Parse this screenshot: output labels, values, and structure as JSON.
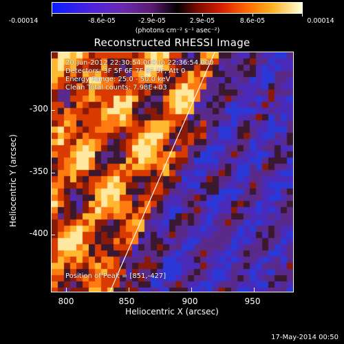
{
  "colorbar": {
    "ticks": [
      "-0.00014",
      "-8.6e-05",
      "-2.9e-05",
      "2.9e-05",
      "8.6e-05",
      "0.00014"
    ],
    "unit": "(photons cm⁻² s⁻¹ asec⁻²)"
  },
  "title": "Reconstructed RHESSI Image",
  "info": {
    "line1": "20-Jun-2012 22:30:54.000 to 22:36:54.000",
    "line2": "Detectors: 3F 5F 6F 7F 8F 9F, Att 0",
    "line3": "Energy Range: 25.0 - 50.0 keV",
    "line4": "Clean     Total counts: 7.98E+03",
    "position": "Position of Peak = [851,-427]"
  },
  "axes": {
    "xlabel": "Heliocentric X (arcsec)",
    "ylabel": "Heliocentric Y (arcsec)",
    "xticks": [
      "800",
      "850",
      "900",
      "950"
    ],
    "yticks": [
      "-300",
      "-350",
      "-400"
    ]
  },
  "footer": "17-May-2014 00:50"
}
